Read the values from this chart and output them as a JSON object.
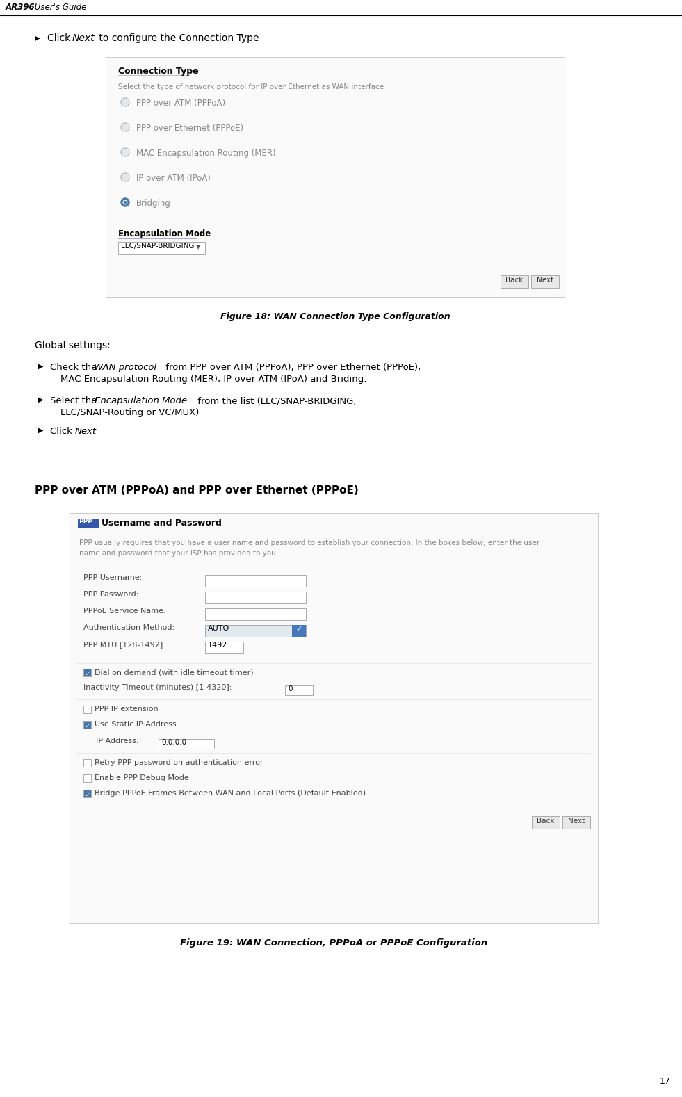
{
  "bg_color": "#ffffff",
  "header_title_bold": "AR396",
  "header_title_normal": " User's Guide",
  "page_number": "17",
  "fig_width": 9.81,
  "fig_height": 15.78,
  "conn_type_title": "Connection Type",
  "conn_type_subtitle": "Select the type of network protocol for IP over Ethernet as WAN interface",
  "radio_options": [
    "PPP over ATM (PPPoA)",
    "PPP over Ethernet (PPPoE)",
    "MAC Encapsulation Routing (MER)",
    "IP over ATM (IPoA)",
    "Bridging"
  ],
  "radio_selected_index": 4,
  "encap_label": "Encapsulation Mode",
  "encap_value": "LLC/SNAP-BRIDGING",
  "fig18_caption": "Figure 18: WAN Connection Type Configuration",
  "global_settings_title": "Global settings:",
  "pppoa_pppoe_title": "PPP over ATM (PPPoA) and PPP over Ethernet (PPPoE)",
  "ppp_box_title": "Username and Password",
  "ppp_box_subtitle_line1": "PPP usually requires that you have a user name and password to establish your connection. In the boxes below, enter the user",
  "ppp_box_subtitle_line2": "name and password that your ISP has provided to you.",
  "ppp_fields": [
    {
      "label": "PPP Username:",
      "value": "",
      "type": "text"
    },
    {
      "label": "PPP Password:",
      "value": "",
      "type": "text"
    },
    {
      "label": "PPPoE Service Name:",
      "value": "",
      "type": "text"
    },
    {
      "label": "Authentication Method:",
      "value": "AUTO",
      "type": "dropdown"
    },
    {
      "label": "PPP MTU [128-1492]:",
      "value": "1492",
      "type": "smalltext"
    }
  ],
  "checkbox1_checked": true,
  "checkbox1_label": "Dial on demand (with idle timeout timer)",
  "inactivity_label": "Inactivity Timeout (minutes) [1-4320]:",
  "inactivity_value": "0",
  "checkbox2_checked": false,
  "checkbox2_label": "PPP IP extension",
  "checkbox3_checked": true,
  "checkbox3_label": "Use Static IP Address",
  "ip_label": "IP Address:",
  "ip_value": "0.0.0.0",
  "checkbox4_checked": false,
  "checkbox4_label": "Retry PPP password on authentication error",
  "checkbox5_checked": false,
  "checkbox5_label": "Enable PPP Debug Mode",
  "checkbox6_checked": true,
  "checkbox6_label": "Bridge PPPoE Frames Between WAN and Local Ports (Default Enabled)",
  "fig19_caption": "Figure 19: WAN Connection, PPPoA or PPPoE Configuration",
  "colors": {
    "header_line": "#000000",
    "box_border": "#cccccc",
    "box_bg": "#ffffff",
    "text_dark": "#222222",
    "text_gray": "#888888",
    "radio_border": "#aaaaaa",
    "radio_selected_fill": "#4477aa",
    "button_bg": "#e8e8e8",
    "button_border": "#aaaaaa",
    "ppp_label": "#444444",
    "input_bg": "#ffffff",
    "input_border": "#aaaaaa",
    "checkbox_checked_bg": "#4477aa",
    "checkbox_unchecked_bg": "#ffffff",
    "dropdown_bg": "#e0e8f0",
    "ppp_tag_bg": "#3355aa",
    "separator": "#dddddd"
  }
}
